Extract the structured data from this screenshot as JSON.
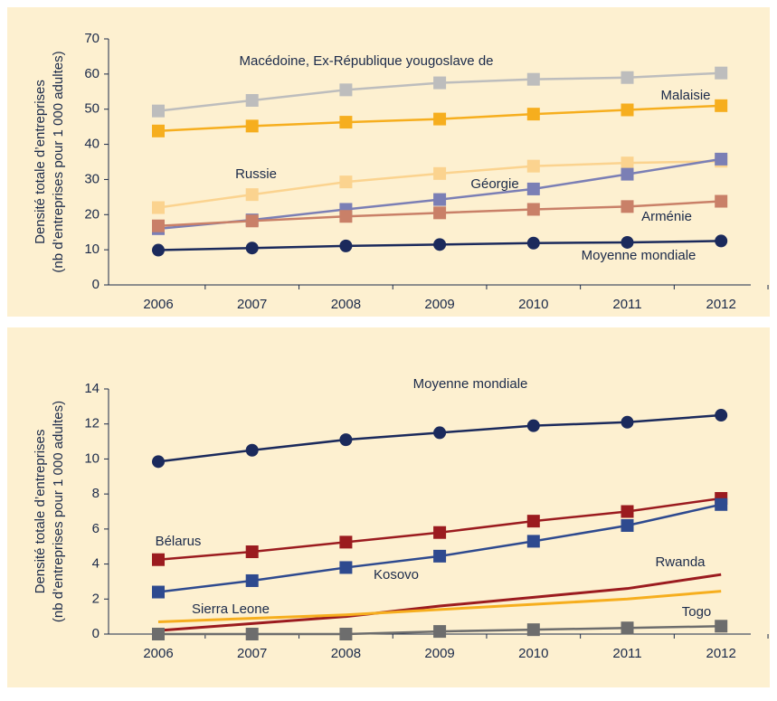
{
  "chart_data": [
    {
      "type": "line",
      "y_label": [
        "Densité totale d’entreprises",
        "(nb d’entreprises pour 1 000 adultes)"
      ],
      "categories": [
        "2006",
        "2007",
        "2008",
        "2009",
        "2010",
        "2011",
        "2012"
      ],
      "ylim": [
        0,
        70
      ],
      "yticks": [
        0,
        10,
        20,
        30,
        40,
        50,
        60,
        70
      ],
      "series": [
        {
          "name": "Macédoine, Ex-République yougoslave de",
          "color": "#bdbdbd",
          "marker": "square",
          "values": [
            49.5,
            52.5,
            55.5,
            57.5,
            58.5,
            59,
            60.3
          ]
        },
        {
          "name": "Malaisie",
          "color": "#f6ae1e",
          "marker": "square",
          "values": [
            43.8,
            45.2,
            46.3,
            47.2,
            48.6,
            49.8,
            51
          ]
        },
        {
          "name": "Russie",
          "color": "#fbd38f",
          "marker": "square",
          "values": [
            22,
            25.7,
            29.3,
            31.7,
            33.8,
            34.7,
            35.2
          ]
        },
        {
          "name": "Géorgie",
          "color": "#7b7fb5",
          "marker": "square",
          "values": [
            16,
            18.5,
            21.5,
            24.3,
            27.3,
            31.5,
            35.8
          ]
        },
        {
          "name": "Arménie",
          "color": "#c98068",
          "marker": "square",
          "values": [
            16.8,
            18.2,
            19.5,
            20.5,
            21.5,
            22.3,
            23.8
          ]
        },
        {
          "name": "Moyenne mondiale",
          "color": "#1b2a5c",
          "marker": "circle",
          "values": [
            9.9,
            10.5,
            11.1,
            11.5,
            11.9,
            12.1,
            12.5
          ]
        }
      ]
    },
    {
      "type": "line",
      "y_label": [
        "Densité totale d’entreprises",
        "(nb d’entreprises pour 1 000 adultes)"
      ],
      "categories": [
        "2006",
        "2007",
        "2008",
        "2009",
        "2010",
        "2011",
        "2012"
      ],
      "ylim": [
        0,
        14
      ],
      "yticks": [
        0,
        2,
        4,
        6,
        8,
        10,
        12,
        14
      ],
      "series": [
        {
          "name": "Moyenne mondiale",
          "color": "#1b2a5c",
          "marker": "circle",
          "values": [
            9.85,
            10.5,
            11.1,
            11.5,
            11.9,
            12.1,
            12.5
          ]
        },
        {
          "name": "Bélarus",
          "color": "#9b1b1f",
          "marker": "square",
          "values": [
            4.25,
            4.7,
            5.25,
            5.8,
            6.45,
            7.0,
            7.75
          ]
        },
        {
          "name": "Kosovo",
          "color": "#2e4a8f",
          "marker": "square",
          "values": [
            2.4,
            3.05,
            3.8,
            4.45,
            5.3,
            6.2,
            7.4
          ]
        },
        {
          "name": "Rwanda",
          "color": "#9b1b1f",
          "marker": "none",
          "values": [
            0.2,
            0.6,
            1.0,
            1.6,
            2.1,
            2.6,
            3.4
          ]
        },
        {
          "name": "Sierra Leone",
          "color": "#f6ae1e",
          "marker": "none",
          "values": [
            0.7,
            0.9,
            1.1,
            1.4,
            1.7,
            2.0,
            2.45
          ]
        },
        {
          "name": "Togo",
          "color": "#6d6d6d",
          "marker": "square",
          "values": [
            0,
            0,
            0,
            0.15,
            0.25,
            0.35,
            0.45
          ]
        }
      ]
    }
  ]
}
